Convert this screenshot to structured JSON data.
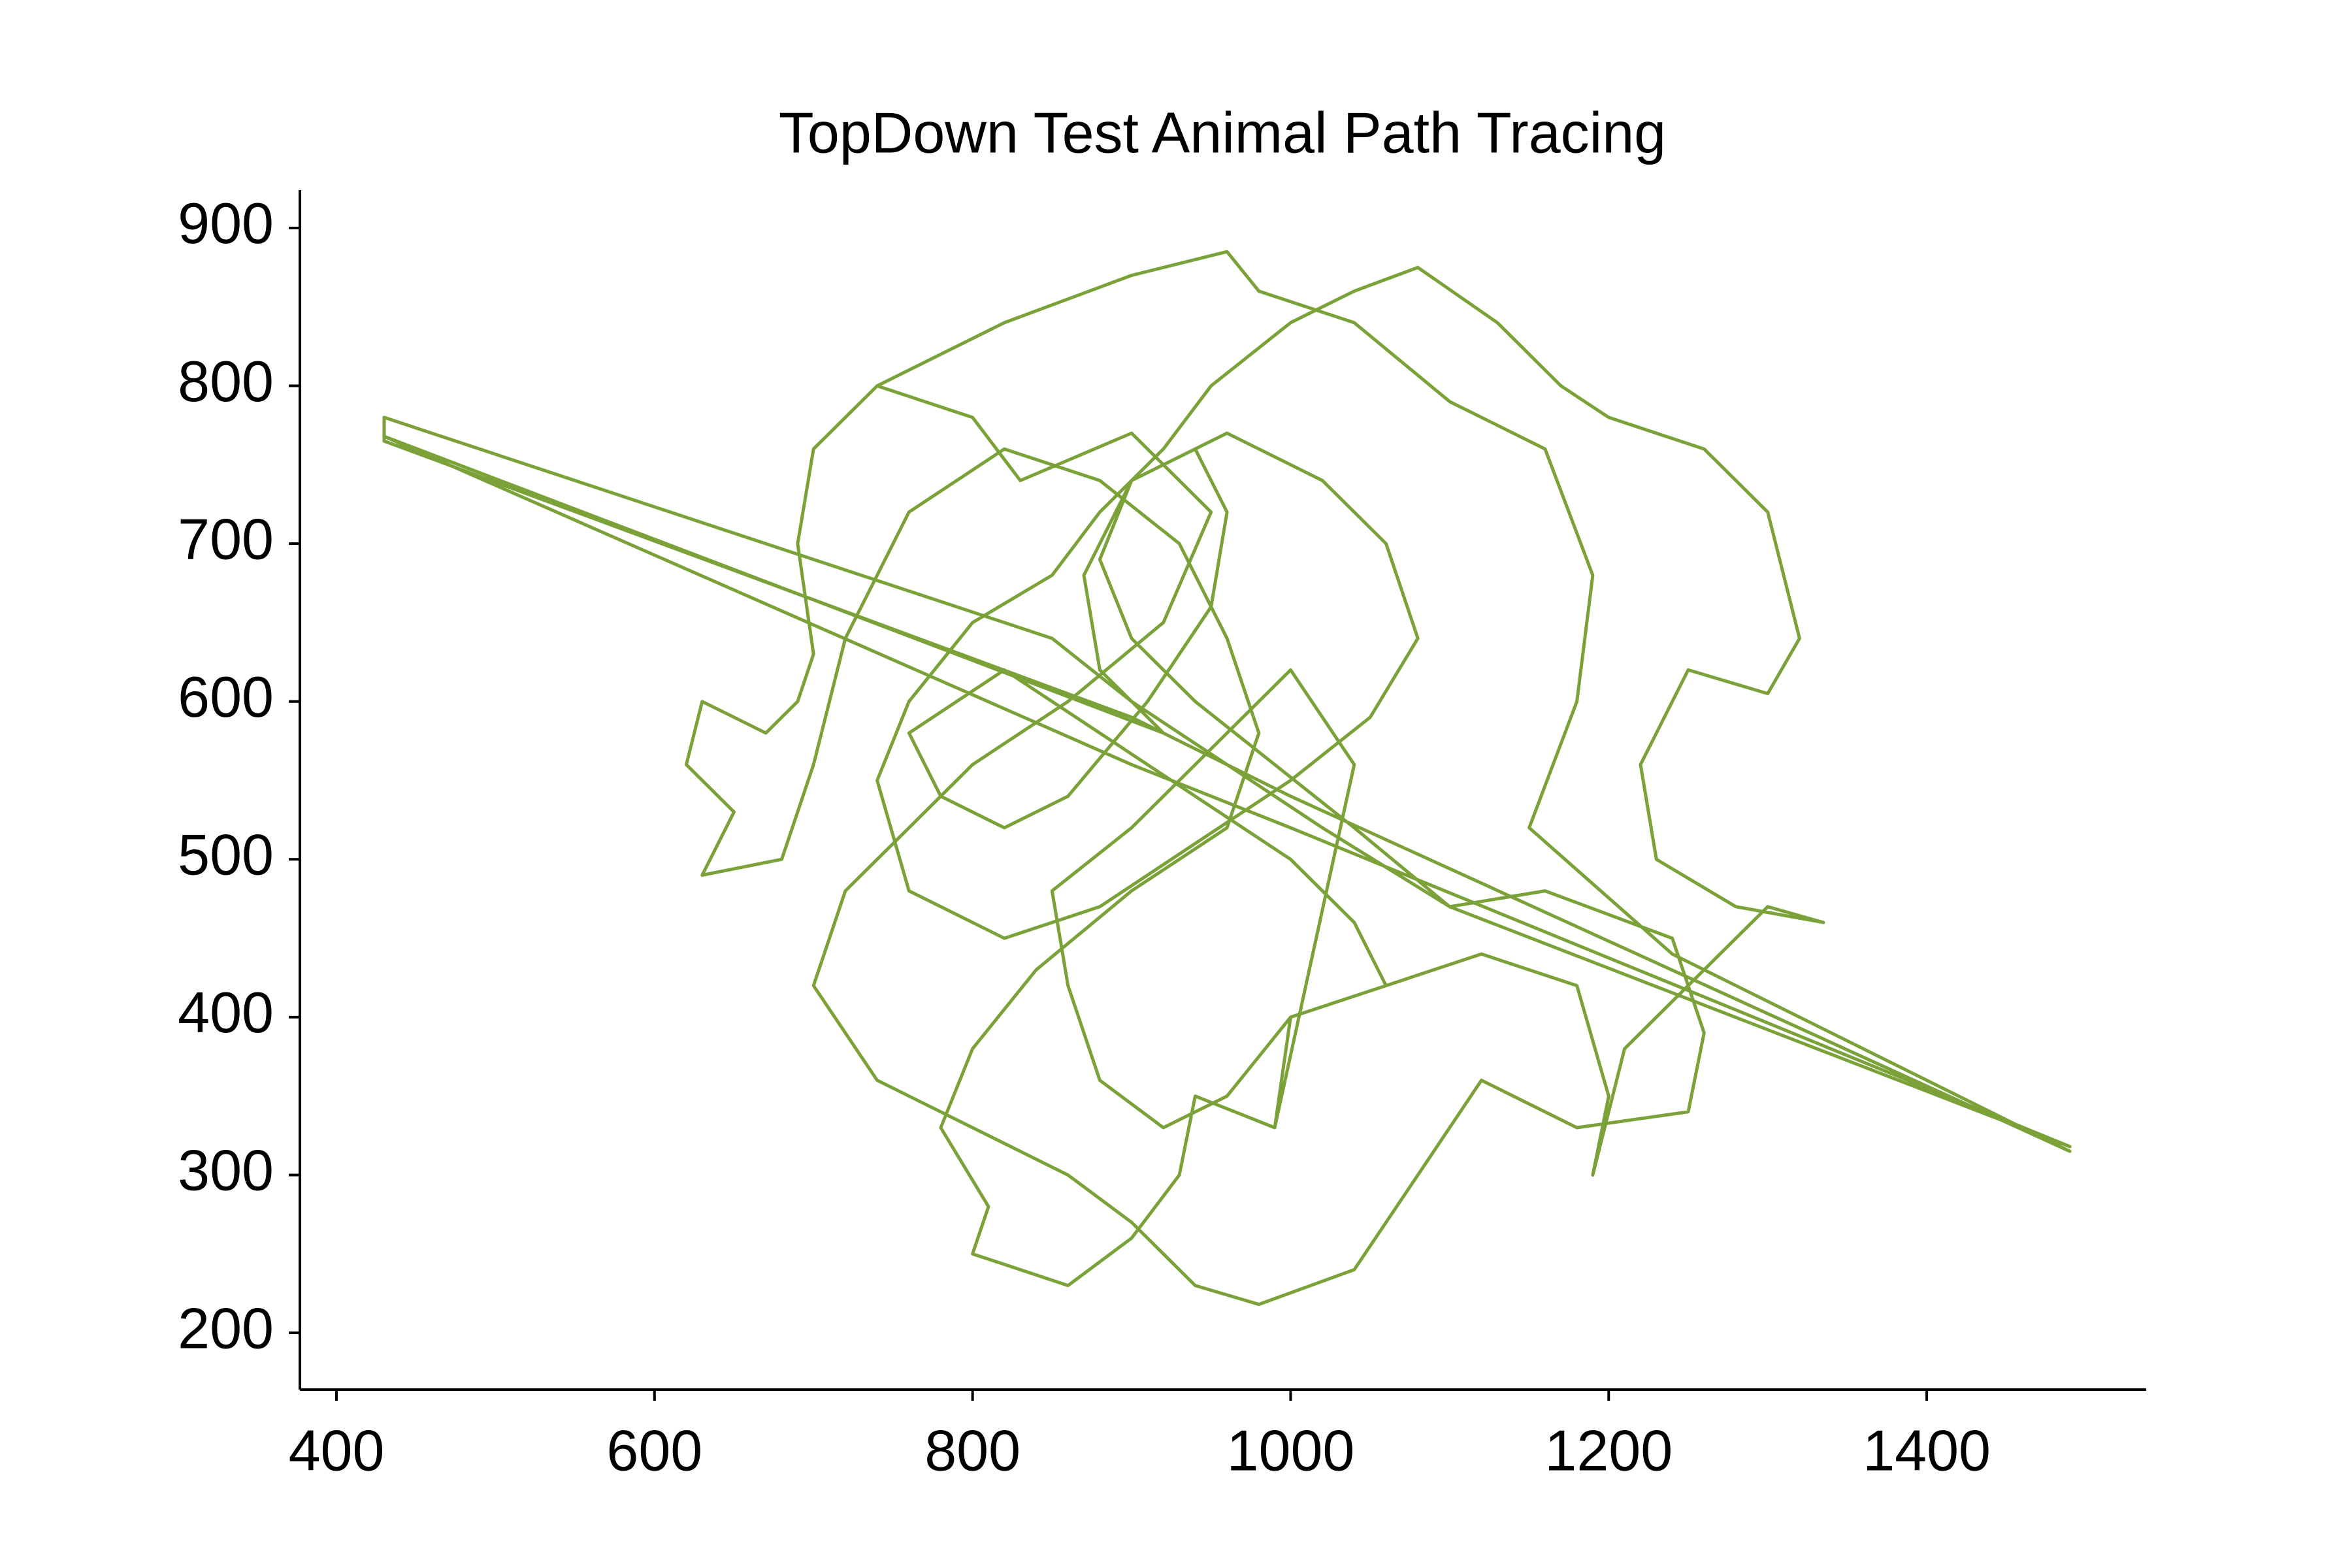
{
  "chart_data": {
    "type": "line",
    "title": "TopDown Test Animal Path Tracing",
    "x": [
      740,
      800,
      830,
      900,
      950,
      920,
      860,
      800,
      760,
      720,
      700,
      740,
      800,
      860,
      900,
      940,
      980,
      1040,
      1080,
      1120,
      1180,
      1250,
      1260,
      1240,
      1160,
      1100,
      1020,
      960,
      900,
      850,
      430,
      430,
      900,
      1000,
      1490,
      1240,
      1150,
      1180,
      1190,
      1160,
      1100,
      1040,
      980,
      960,
      900,
      820,
      740,
      700,
      690,
      700,
      690,
      670,
      630,
      620,
      650,
      630,
      680,
      700,
      720,
      760,
      820,
      880,
      930,
      960,
      980,
      960,
      900,
      840,
      800,
      780,
      810,
      800,
      860,
      900,
      930,
      940,
      990,
      1000,
      1060,
      1120,
      1180,
      1200,
      1190,
      1210,
      1260,
      1300,
      1335,
      1280,
      1230,
      1220,
      1250,
      1300,
      1320,
      1300,
      1260,
      1200,
      1170,
      1130,
      1080,
      1040,
      1000,
      950,
      920,
      880,
      850,
      800,
      760,
      740,
      760,
      820,
      880,
      940,
      1000,
      1050,
      1080,
      1060,
      1020,
      960,
      900,
      870,
      880,
      920,
      430,
      900,
      1000,
      1490,
      1100,
      1040,
      990,
      940,
      900,
      880,
      900,
      940,
      960,
      950,
      910,
      860,
      820,
      780,
      760,
      820,
      880,
      940,
      1000,
      1040,
      1060,
      1000,
      960,
      920,
      880,
      860,
      850,
      900,
      960,
      1000,
      1040,
      990
    ],
    "values": [
      800,
      780,
      740,
      770,
      720,
      650,
      600,
      560,
      520,
      480,
      420,
      360,
      330,
      300,
      270,
      230,
      218,
      240,
      300,
      360,
      330,
      340,
      390,
      450,
      480,
      470,
      520,
      560,
      600,
      640,
      780,
      765,
      590,
      540,
      315,
      440,
      520,
      600,
      680,
      760,
      790,
      840,
      860,
      885,
      870,
      840,
      800,
      760,
      700,
      630,
      600,
      580,
      600,
      560,
      530,
      490,
      500,
      560,
      640,
      720,
      760,
      740,
      700,
      640,
      580,
      520,
      480,
      430,
      380,
      330,
      280,
      250,
      230,
      260,
      300,
      350,
      330,
      400,
      420,
      440,
      420,
      350,
      300,
      380,
      430,
      470,
      460,
      470,
      500,
      560,
      620,
      605,
      640,
      720,
      760,
      780,
      800,
      840,
      875,
      860,
      840,
      800,
      760,
      720,
      680,
      650,
      600,
      550,
      480,
      450,
      470,
      510,
      550,
      590,
      640,
      700,
      740,
      770,
      740,
      680,
      620,
      580,
      768,
      560,
      520,
      318,
      470,
      520,
      560,
      600,
      640,
      690,
      740,
      760,
      720,
      660,
      600,
      540,
      520,
      540,
      580,
      620,
      580,
      540,
      500,
      460,
      420,
      400,
      350,
      330,
      360,
      420,
      480,
      520,
      580,
      620,
      560,
      330
    ],
    "color": "#7aa238",
    "xlim": [
      377,
      1538
    ],
    "ylim": [
      164,
      924
    ],
    "xticks": [
      400,
      600,
      800,
      1000,
      1200,
      1400
    ],
    "yticks": [
      200,
      300,
      400,
      500,
      600,
      700,
      800,
      900
    ]
  }
}
